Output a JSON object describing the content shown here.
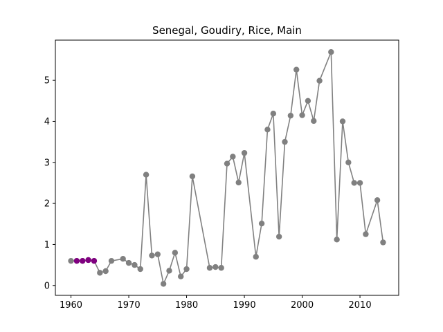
{
  "chart_data": {
    "type": "line",
    "title": "Senegal, Goudiry, Rice, Main",
    "xlabel": "",
    "ylabel": "",
    "xlim": [
      1957.3,
      2016.7
    ],
    "ylim": [
      -0.24,
      5.98
    ],
    "x_ticks": [
      1960,
      1970,
      1980,
      1990,
      2000,
      2010
    ],
    "y_ticks": [
      0,
      1,
      2,
      3,
      4,
      5
    ],
    "grid": false,
    "line_color": "#808080",
    "marker_color": "#808080",
    "highlight_color": "#800080",
    "series": [
      {
        "x": [
          1960,
          1961,
          1962,
          1963,
          1964,
          1965,
          1966,
          1967,
          1969,
          1970,
          1971,
          1972,
          1973,
          1974,
          1975,
          1976,
          1977,
          1978,
          1979,
          1980,
          1981,
          1984,
          1985,
          1986,
          1987,
          1988,
          1989,
          1990,
          1992,
          1993,
          1994,
          1995,
          1996,
          1997,
          1998,
          1999,
          2000,
          2001,
          2002,
          2003,
          2005,
          2006,
          2007,
          2008,
          2009,
          2010,
          2011,
          2013,
          2014
        ],
        "values": [
          0.6,
          0.6,
          0.6,
          0.62,
          0.6,
          0.31,
          0.35,
          0.6,
          0.65,
          0.55,
          0.5,
          0.4,
          2.7,
          0.73,
          0.76,
          0.04,
          0.36,
          0.8,
          0.22,
          0.4,
          2.66,
          0.43,
          0.45,
          0.43,
          2.97,
          3.14,
          2.51,
          3.23,
          0.7,
          1.51,
          3.8,
          4.19,
          1.19,
          3.5,
          4.14,
          5.26,
          4.15,
          4.5,
          4.01,
          4.99,
          5.69,
          1.12,
          4.0,
          3.0,
          2.5,
          2.5,
          1.25,
          2.08,
          1.05
        ]
      }
    ],
    "highlighted_points": {
      "x": [
        1961,
        1962,
        1963,
        1964
      ],
      "values": [
        0.6,
        0.6,
        0.62,
        0.6
      ]
    }
  }
}
